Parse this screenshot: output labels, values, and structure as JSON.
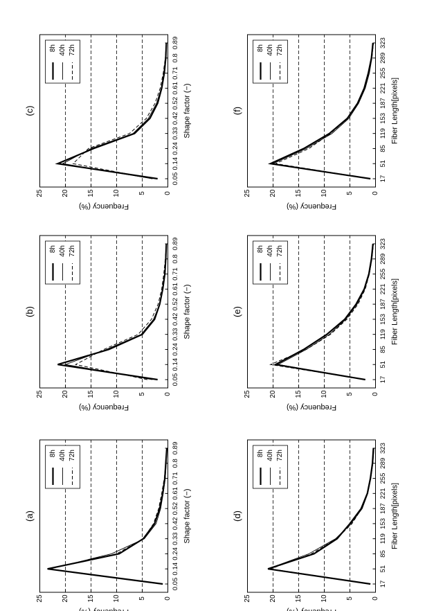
{
  "chart_data": [
    {
      "id": "a",
      "panel_label": "(a)",
      "type": "line",
      "xlabel": "Shape factor (−)",
      "ylabel": "Frequency (%)",
      "x_ticks": [
        "0.05",
        "0.14",
        "0.24",
        "0.33",
        "0.42",
        "0.52",
        "0.61",
        "0.71",
        "0.8",
        "0.89"
      ],
      "y_ticks": [
        0,
        5,
        10,
        15,
        20,
        25
      ],
      "ylim": [
        0,
        25
      ],
      "grid": "dashed horizontal at 5, 10, 15, 20",
      "legend_position": "top-left",
      "series": [
        {
          "name": "8h",
          "style": "thick",
          "values": [
            1,
            23.5,
            9.5,
            4.8,
            2.6,
            1.6,
            1.0,
            0.6,
            0.4,
            0.2
          ]
        },
        {
          "name": "40h",
          "style": "thin",
          "values": [
            1,
            23.0,
            11.0,
            4.6,
            2.3,
            1.4,
            0.9,
            0.5,
            0.3,
            0.2
          ]
        },
        {
          "name": "72h",
          "style": "dashed",
          "values": [
            1,
            23.5,
            10.0,
            4.8,
            2.8,
            1.8,
            1.2,
            0.7,
            0.4,
            0.2
          ]
        }
      ]
    },
    {
      "id": "b",
      "panel_label": "(b)",
      "type": "line",
      "xlabel": "Shape factor (−)",
      "ylabel": "Frequency (%)",
      "x_ticks": [
        "0.05",
        "0.14",
        "0.24",
        "0.33",
        "0.42",
        "0.52",
        "0.61",
        "0.71",
        "0.8",
        "0.89"
      ],
      "y_ticks": [
        0,
        5,
        10,
        15,
        20,
        25
      ],
      "ylim": [
        0,
        25
      ],
      "grid": "dashed horizontal at 5, 10, 15, 20",
      "legend_position": "top-left",
      "series": [
        {
          "name": "8h",
          "style": "thick",
          "values": [
            2,
            21.5,
            11.5,
            5.0,
            2.6,
            1.6,
            1.0,
            0.6,
            0.4,
            0.3
          ]
        },
        {
          "name": "40h",
          "style": "thin",
          "values": [
            3,
            20.0,
            12.0,
            5.2,
            2.8,
            1.6,
            1.0,
            0.6,
            0.4,
            0.3
          ]
        },
        {
          "name": "72h",
          "style": "dashed",
          "values": [
            4,
            18.0,
            12.5,
            5.8,
            3.2,
            1.9,
            1.2,
            0.8,
            0.5,
            0.3
          ]
        }
      ]
    },
    {
      "id": "c",
      "panel_label": "(c)",
      "type": "line",
      "xlabel": "Shape factor (−)",
      "ylabel": "Frequency (%)",
      "x_ticks": [
        "0.05",
        "0.14",
        "0.24",
        "0.33",
        "0.42",
        "0.52",
        "0.61",
        "0.71",
        "0.8",
        "0.89"
      ],
      "y_ticks": [
        0,
        5,
        10,
        15,
        20,
        25
      ],
      "ylim": [
        0,
        25
      ],
      "grid": "dashed horizontal at 5, 10, 15, 20",
      "legend_position": "top-left",
      "series": [
        {
          "name": "8h",
          "style": "thick",
          "values": [
            2,
            21.5,
            14.5,
            6.5,
            3.5,
            2.0,
            1.2,
            0.7,
            0.4,
            0.3
          ]
        },
        {
          "name": "40h",
          "style": "thin",
          "values": [
            3,
            20.5,
            15.0,
            6.8,
            3.8,
            2.2,
            1.3,
            0.8,
            0.5,
            0.3
          ]
        },
        {
          "name": "72h",
          "style": "dashed",
          "values": [
            3,
            18.5,
            15.5,
            7.5,
            4.2,
            2.5,
            1.5,
            0.9,
            0.5,
            0.3
          ]
        }
      ]
    },
    {
      "id": "d",
      "panel_label": "(d)",
      "type": "line",
      "xlabel": "Fiber Length[pixels]",
      "ylabel": "Frequency (%)",
      "x_ticks": [
        "17",
        "51",
        "85",
        "119",
        "153",
        "187",
        "221",
        "255",
        "289",
        "323"
      ],
      "y_ticks": [
        0,
        5,
        10,
        15,
        20,
        25
      ],
      "ylim": [
        0,
        25
      ],
      "grid": "dashed horizontal at 5, 10, 15, 20",
      "legend_position": "top-left",
      "series": [
        {
          "name": "8h",
          "style": "thick",
          "values": [
            1,
            21,
            12,
            7.5,
            5,
            2.8,
            1.6,
            1.0,
            0.6,
            0.4
          ]
        },
        {
          "name": "40h",
          "style": "thin",
          "values": [
            1,
            21,
            13,
            7.8,
            4.8,
            2.6,
            1.5,
            0.9,
            0.5,
            0.3
          ]
        },
        {
          "name": "72h",
          "style": "dashed",
          "values": [
            1,
            20.5,
            12.5,
            7.6,
            4.6,
            2.7,
            1.6,
            1.0,
            0.6,
            0.4
          ]
        }
      ]
    },
    {
      "id": "e",
      "panel_label": "(e)",
      "type": "line",
      "xlabel": "Fiber Length[pixels]",
      "ylabel": "Frequency (%)",
      "x_ticks": [
        "17",
        "51",
        "85",
        "119",
        "153",
        "187",
        "221",
        "255",
        "289",
        "323"
      ],
      "y_ticks": [
        0,
        5,
        10,
        15,
        20,
        25
      ],
      "ylim": [
        0,
        25
      ],
      "grid": "dashed horizontal at 5, 10, 15, 20",
      "legend_position": "top-left",
      "series": [
        {
          "name": "8h",
          "style": "thick",
          "values": [
            2,
            19.5,
            14,
            9.5,
            6,
            3.8,
            2.2,
            1.3,
            0.8,
            0.5
          ]
        },
        {
          "name": "40h",
          "style": "thin",
          "values": [
            2,
            19,
            13.5,
            9,
            5.8,
            3.6,
            2.1,
            1.2,
            0.7,
            0.4
          ]
        },
        {
          "name": "72h",
          "style": "dashed",
          "values": [
            2,
            20.5,
            13.5,
            8.8,
            5.6,
            3.4,
            2.0,
            1.2,
            0.7,
            0.4
          ]
        }
      ]
    },
    {
      "id": "f",
      "panel_label": "(f)",
      "type": "line",
      "xlabel": "Fiber Length[pixels]",
      "ylabel": "Frequency (%)",
      "x_ticks": [
        "17",
        "51",
        "85",
        "119",
        "153",
        "187",
        "221",
        "255",
        "289",
        "323"
      ],
      "y_ticks": [
        0,
        5,
        10,
        15,
        20,
        25
      ],
      "ylim": [
        0,
        25
      ],
      "grid": "dashed horizontal at 5, 10, 15, 20",
      "legend_position": "top-left",
      "series": [
        {
          "name": "8h",
          "style": "thick",
          "values": [
            1,
            20.5,
            14,
            9,
            5.5,
            3.5,
            2.2,
            1.4,
            0.8,
            0.5
          ]
        },
        {
          "name": "40h",
          "style": "thin",
          "values": [
            1,
            20,
            13.5,
            8.5,
            5.2,
            3.3,
            2.0,
            1.2,
            0.7,
            0.4
          ]
        },
        {
          "name": "72h",
          "style": "dashed",
          "values": [
            1,
            19.5,
            13,
            8.8,
            5.4,
            3.4,
            2.1,
            1.3,
            0.7,
            0.4
          ]
        }
      ]
    }
  ]
}
